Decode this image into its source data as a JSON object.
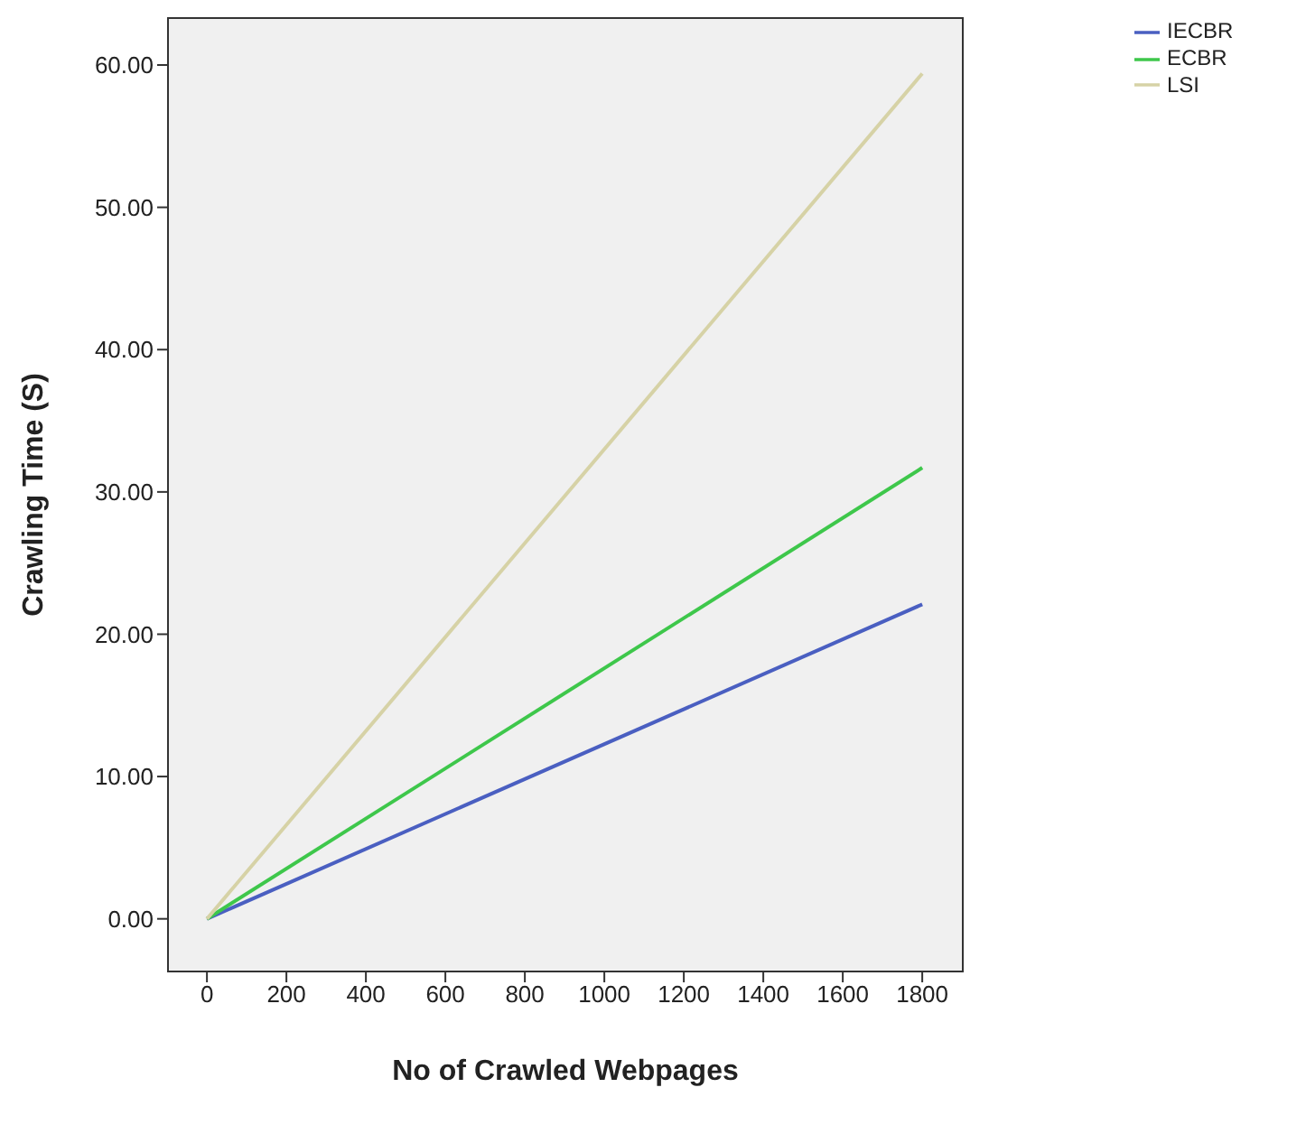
{
  "chart_data": {
    "type": "line",
    "xlabel": "No of Crawled Webpages",
    "ylabel": "Crawling Time (S)",
    "x": [
      0,
      1800
    ],
    "series": [
      {
        "name": "IECBR",
        "color": "#4a5fc1",
        "values": [
          0,
          22.1
        ]
      },
      {
        "name": "ECBR",
        "color": "#3ec74b",
        "values": [
          0,
          31.7
        ]
      },
      {
        "name": "LSI",
        "color": "#d6d2a6",
        "values": [
          0,
          59.4
        ]
      }
    ],
    "xlim": [
      -98,
      1902
    ],
    "xticks": [
      0,
      200,
      400,
      600,
      800,
      1000,
      1200,
      1400,
      1600,
      1800
    ],
    "ylim": [
      -3.7,
      63.3
    ],
    "yticks": [
      {
        "value": 0,
        "label": "0.00"
      },
      {
        "value": 10,
        "label": "10.00"
      },
      {
        "value": 20,
        "label": "20.00"
      },
      {
        "value": 30,
        "label": "30.00"
      },
      {
        "value": 40,
        "label": "40.00"
      },
      {
        "value": 50,
        "label": "50.00"
      },
      {
        "value": 60,
        "label": "60.00"
      }
    ],
    "legend": "top right",
    "marker": "none",
    "line_style": "solid"
  }
}
